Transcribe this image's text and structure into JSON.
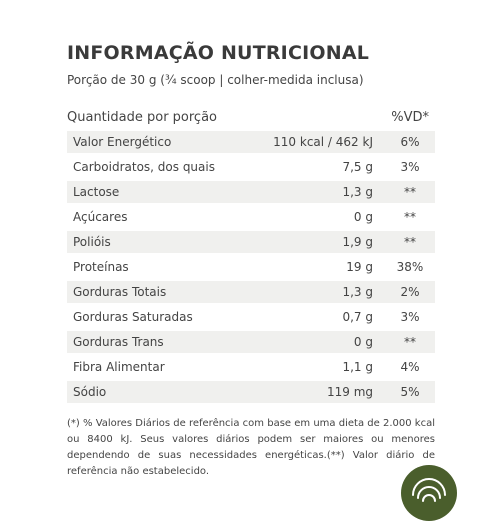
{
  "title": "INFORMAÇÃO NUTRICIONAL",
  "portion": "Porção de 30 g (¾ scoop | colher-medida inclusa)",
  "header": {
    "quantity_label": "Quantidade por porção",
    "vd_label": "%VD*"
  },
  "rows": [
    {
      "name": "Valor Energético",
      "qty": "110 kcal / 462 kJ",
      "vd": "6%"
    },
    {
      "name": "Carboidratos, dos quais",
      "qty": "7,5 g",
      "vd": "3%"
    },
    {
      "name": "Lactose",
      "qty": "1,3 g",
      "vd": "**"
    },
    {
      "name": "Açúcares",
      "qty": "0 g",
      "vd": "**"
    },
    {
      "name": "Polióis",
      "qty": "1,9 g",
      "vd": "**"
    },
    {
      "name": "Proteínas",
      "qty": "19 g",
      "vd": "38%"
    },
    {
      "name": "Gorduras Totais",
      "qty": "1,3 g",
      "vd": "2%"
    },
    {
      "name": "Gorduras Saturadas",
      "qty": "0,7 g",
      "vd": "3%"
    },
    {
      "name": "Gorduras Trans",
      "qty": "0 g",
      "vd": "**"
    },
    {
      "name": "Fibra Alimentar",
      "qty": "1,1 g",
      "vd": "4%"
    },
    {
      "name": "Sódio",
      "qty": "119 mg",
      "vd": "5%"
    }
  ],
  "footnote": "(*) % Valores Diários de referência com base em uma dieta de 2.000 kcal ou 8400 kJ. Seus valores diários podem ser maiores ou menores dependendo de suas necessidades energéticas.(**) Valor diário de referência não estabelecido.",
  "colors": {
    "row_shade": "#f0f0ee",
    "badge": "#4a5e2c",
    "text": "#444444"
  },
  "badge_icon": "fingerprint-icon"
}
